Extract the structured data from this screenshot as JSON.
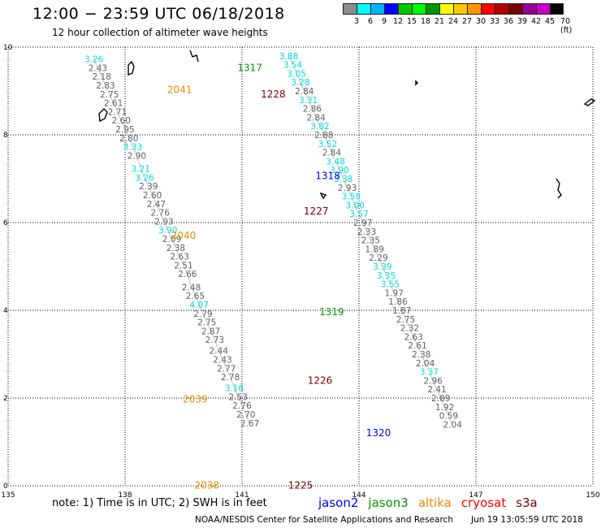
{
  "title": "12:00 − 23:59 UTC 06/18/2018",
  "subtitle": "12 hour collection of altimeter wave heights",
  "legend": {
    "colors": [
      "#8c8c8c",
      "#00ffff",
      "#00b4ff",
      "#0000ff",
      "#00c800",
      "#00ff00",
      "#009600",
      "#ffff00",
      "#ffc800",
      "#ff9600",
      "#ff0000",
      "#b40000",
      "#780000",
      "#960096",
      "#c800c8",
      "#000000"
    ],
    "labels": [
      "3",
      "6",
      "9",
      "12",
      "15",
      "18",
      "21",
      "24",
      "27",
      "30",
      "33",
      "36",
      "39",
      "42",
      "45",
      "70 (ft)"
    ]
  },
  "axes": {
    "x_ticks": [
      "135",
      "138",
      "141",
      "144",
      "147",
      "150"
    ],
    "y_ticks": [
      "0",
      "2",
      "4",
      "6",
      "8",
      "10"
    ]
  },
  "chart_data": {
    "type": "scatter",
    "xlim": [
      135,
      150
    ],
    "ylim": [
      0,
      10
    ],
    "unit": "ft",
    "tracks": [
      {
        "color": "#808080",
        "points": [
          [
            137.2,
            9.73,
            "3.26",
            "#00dcdc"
          ],
          [
            137.3,
            9.53,
            "2.43"
          ],
          [
            137.4,
            9.33,
            "2.18"
          ],
          [
            137.5,
            9.13,
            "2.83"
          ],
          [
            137.6,
            8.93,
            "2.75"
          ],
          [
            137.7,
            8.73,
            "2.61"
          ],
          [
            137.8,
            8.53,
            "2.71"
          ],
          [
            137.9,
            8.33,
            "2.60"
          ],
          [
            138.0,
            8.13,
            "2.95"
          ],
          [
            138.1,
            7.93,
            "2.80"
          ],
          [
            138.2,
            7.73,
            "3.33",
            "#00dcdc"
          ],
          [
            138.3,
            7.53,
            "2.90"
          ],
          [
            138.4,
            7.23,
            "3.21",
            "#00dcdc"
          ],
          [
            138.5,
            7.03,
            "3.26",
            "#00dcdc"
          ],
          [
            138.6,
            6.83,
            "2.39"
          ],
          [
            138.7,
            6.63,
            "2.60"
          ],
          [
            138.8,
            6.43,
            "2.47"
          ],
          [
            138.9,
            6.23,
            "2.76"
          ],
          [
            139.0,
            6.03,
            "2.93"
          ],
          [
            139.1,
            5.83,
            "3.90",
            "#00dcdc"
          ],
          [
            139.2,
            5.63,
            "2.09"
          ],
          [
            139.3,
            5.43,
            "2.38"
          ],
          [
            139.4,
            5.23,
            "2.63"
          ],
          [
            139.5,
            5.03,
            "2.51"
          ],
          [
            139.6,
            4.83,
            "2.66"
          ],
          [
            139.7,
            4.53,
            "2.48"
          ],
          [
            139.8,
            4.33,
            "2.65"
          ],
          [
            139.9,
            4.13,
            "4.07",
            "#00dcdc"
          ],
          [
            140.0,
            3.93,
            "2.79"
          ],
          [
            140.1,
            3.73,
            "2.75"
          ],
          [
            140.2,
            3.53,
            "2.87"
          ],
          [
            140.3,
            3.33,
            "2.73"
          ],
          [
            140.4,
            3.08,
            "2.44"
          ],
          [
            140.5,
            2.88,
            "2.43"
          ],
          [
            140.6,
            2.68,
            "2.77"
          ],
          [
            140.7,
            2.48,
            "2.78"
          ],
          [
            140.8,
            2.23,
            "3.16",
            "#00dcdc"
          ],
          [
            140.9,
            2.03,
            "2.53"
          ],
          [
            141.0,
            1.83,
            "2.76"
          ],
          [
            141.1,
            1.63,
            "2.70"
          ],
          [
            141.2,
            1.43,
            "2.67"
          ]
        ]
      },
      {
        "color": "#808080",
        "points": [
          [
            142.2,
            9.8,
            "3.88",
            "#00dcdc"
          ],
          [
            142.3,
            9.6,
            "3.54",
            "#00dcdc"
          ],
          [
            142.4,
            9.4,
            "3.05",
            "#00dcdc"
          ],
          [
            142.5,
            9.2,
            "3.28",
            "#00dcdc"
          ],
          [
            142.6,
            9.0,
            "2.84"
          ],
          [
            142.7,
            8.8,
            "3.31",
            "#00dcdc"
          ],
          [
            142.8,
            8.6,
            "2.86"
          ],
          [
            142.9,
            8.4,
            "2.84"
          ],
          [
            143.0,
            8.2,
            "3.82",
            "#00dcdc"
          ],
          [
            143.1,
            8.0,
            "2.88"
          ],
          [
            143.2,
            7.8,
            "3.52",
            "#00dcdc"
          ],
          [
            143.3,
            7.6,
            "2.84"
          ],
          [
            143.4,
            7.4,
            "3.48",
            "#00dcdc"
          ],
          [
            143.5,
            7.2,
            "3.90",
            "#00dcdc"
          ],
          [
            143.6,
            7.0,
            "3.38",
            "#00dcdc"
          ],
          [
            143.7,
            6.8,
            "2.93"
          ],
          [
            143.8,
            6.6,
            "3.58",
            "#00dcdc"
          ],
          [
            143.9,
            6.4,
            "3.00",
            "#00dcdc"
          ],
          [
            144.0,
            6.2,
            "3.57",
            "#00dcdc"
          ],
          [
            144.1,
            6.0,
            "2.97"
          ],
          [
            144.2,
            5.8,
            "2.33"
          ],
          [
            144.3,
            5.6,
            "2.35"
          ],
          [
            144.4,
            5.4,
            "1.89"
          ],
          [
            144.5,
            5.2,
            "2.29"
          ],
          [
            144.6,
            5.0,
            "3.39",
            "#00dcdc"
          ],
          [
            144.7,
            4.8,
            "3.35",
            "#00dcdc"
          ],
          [
            144.8,
            4.6,
            "3.55",
            "#00dcdc"
          ],
          [
            144.9,
            4.4,
            "1.97"
          ],
          [
            145.0,
            4.2,
            "1.86"
          ],
          [
            145.1,
            4.0,
            "1.87"
          ],
          [
            145.2,
            3.8,
            "2.75"
          ],
          [
            145.3,
            3.6,
            "2.32"
          ],
          [
            145.4,
            3.4,
            "2.63"
          ],
          [
            145.5,
            3.2,
            "2.61"
          ],
          [
            145.6,
            3.0,
            "2.38"
          ],
          [
            145.7,
            2.8,
            "2.04"
          ],
          [
            145.8,
            2.6,
            "3.37",
            "#00dcdc"
          ],
          [
            145.9,
            2.4,
            "2.96"
          ],
          [
            146.0,
            2.2,
            "2.41"
          ],
          [
            146.1,
            2.0,
            "2.89"
          ],
          [
            146.2,
            1.8,
            "1.92"
          ],
          [
            146.3,
            1.6,
            "0.59"
          ],
          [
            146.4,
            1.4,
            "2.04"
          ]
        ]
      }
    ],
    "labels": [
      {
        "x": 139.4,
        "y": 9.05,
        "text": "2041",
        "color": "#e68c00"
      },
      {
        "x": 141.2,
        "y": 9.55,
        "text": "1317",
        "color": "#009600"
      },
      {
        "x": 141.8,
        "y": 8.94,
        "text": "1228",
        "color": "#780000"
      },
      {
        "x": 143.2,
        "y": 7.08,
        "text": "1318",
        "color": "#0000ff"
      },
      {
        "x": 142.9,
        "y": 6.28,
        "text": "1227",
        "color": "#780000"
      },
      {
        "x": 139.5,
        "y": 5.72,
        "text": "2040",
        "color": "#e68c00"
      },
      {
        "x": 143.3,
        "y": 3.98,
        "text": "1319",
        "color": "#009600"
      },
      {
        "x": 143.0,
        "y": 2.42,
        "text": "1226",
        "color": "#780000"
      },
      {
        "x": 139.8,
        "y": 1.99,
        "text": "2039",
        "color": "#e68c00"
      },
      {
        "x": 144.5,
        "y": 1.22,
        "text": "1320",
        "color": "#0000ff"
      },
      {
        "x": 140.1,
        "y": 0.03,
        "text": "2038",
        "color": "#e68c00"
      },
      {
        "x": 142.5,
        "y": 0.03,
        "text": "1225",
        "color": "#780000"
      }
    ]
  },
  "note": "note:  1) Time is in UTC;  2) SWH is in feet",
  "satellites": [
    {
      "name": "jason2",
      "color": "#0000ff"
    },
    {
      "name": "jason3",
      "color": "#009600"
    },
    {
      "name": "altika",
      "color": "#e68c00"
    },
    {
      "name": "cryosat",
      "color": "#ff0000"
    },
    {
      "name": "s3a",
      "color": "#780000"
    }
  ],
  "credit": "NOAA/NESDIS Center for Satellite Applications and Research",
  "timestamp": "Jun 19 13:05:59 UTC 2018"
}
